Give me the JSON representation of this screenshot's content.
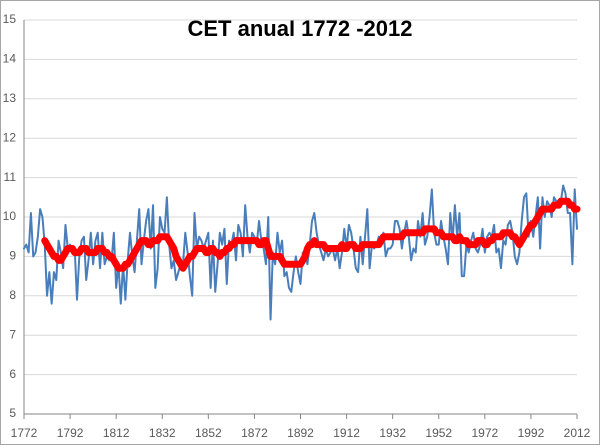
{
  "chart_data": {
    "type": "line",
    "title": "CET anual 1772 -2012",
    "x": [
      1772,
      1773,
      1774,
      1775,
      1776,
      1777,
      1778,
      1779,
      1780,
      1781,
      1782,
      1783,
      1784,
      1785,
      1786,
      1787,
      1788,
      1789,
      1790,
      1791,
      1792,
      1793,
      1794,
      1795,
      1796,
      1797,
      1798,
      1799,
      1800,
      1801,
      1802,
      1803,
      1804,
      1805,
      1806,
      1807,
      1808,
      1809,
      1810,
      1811,
      1812,
      1813,
      1814,
      1815,
      1816,
      1817,
      1818,
      1819,
      1820,
      1821,
      1822,
      1823,
      1824,
      1825,
      1826,
      1827,
      1828,
      1829,
      1830,
      1831,
      1832,
      1833,
      1834,
      1835,
      1836,
      1837,
      1838,
      1839,
      1840,
      1841,
      1842,
      1843,
      1844,
      1845,
      1846,
      1847,
      1848,
      1849,
      1850,
      1851,
      1852,
      1853,
      1854,
      1855,
      1856,
      1857,
      1858,
      1859,
      1860,
      1861,
      1862,
      1863,
      1864,
      1865,
      1866,
      1867,
      1868,
      1869,
      1870,
      1871,
      1872,
      1873,
      1874,
      1875,
      1876,
      1877,
      1878,
      1879,
      1880,
      1881,
      1882,
      1883,
      1884,
      1885,
      1886,
      1887,
      1888,
      1889,
      1890,
      1891,
      1892,
      1893,
      1894,
      1895,
      1896,
      1897,
      1898,
      1899,
      1900,
      1901,
      1902,
      1903,
      1904,
      1905,
      1906,
      1907,
      1908,
      1909,
      1910,
      1911,
      1912,
      1913,
      1914,
      1915,
      1916,
      1917,
      1918,
      1919,
      1920,
      1921,
      1922,
      1923,
      1924,
      1925,
      1926,
      1927,
      1928,
      1929,
      1930,
      1931,
      1932,
      1933,
      1934,
      1935,
      1936,
      1937,
      1938,
      1939,
      1940,
      1941,
      1942,
      1943,
      1944,
      1945,
      1946,
      1947,
      1948,
      1949,
      1950,
      1951,
      1952,
      1953,
      1954,
      1955,
      1956,
      1957,
      1958,
      1959,
      1960,
      1961,
      1962,
      1963,
      1964,
      1965,
      1966,
      1967,
      1968,
      1969,
      1970,
      1971,
      1972,
      1973,
      1974,
      1975,
      1976,
      1977,
      1978,
      1979,
      1980,
      1981,
      1982,
      1983,
      1984,
      1985,
      1986,
      1987,
      1988,
      1989,
      1990,
      1991,
      1992,
      1993,
      1994,
      1995,
      1996,
      1997,
      1998,
      1999,
      2000,
      2001,
      2002,
      2003,
      2004,
      2005,
      2006,
      2007,
      2008,
      2009,
      2010,
      2011,
      2012
    ],
    "series": [
      {
        "color": "#4a7ebb",
        "width": 2,
        "values": [
          9.2,
          9.3,
          9.1,
          10.1,
          9.0,
          9.1,
          9.5,
          10.2,
          10.0,
          9.3,
          8.0,
          8.6,
          7.8,
          8.6,
          8.4,
          9.4,
          9.1,
          8.7,
          9.8,
          9.2,
          9.3,
          9.2,
          9.2,
          7.9,
          9.0,
          9.4,
          9.5,
          8.4,
          8.9,
          9.6,
          8.8,
          9.4,
          9.6,
          8.7,
          9.6,
          8.8,
          9.0,
          8.9,
          8.9,
          9.6,
          8.2,
          8.8,
          7.8,
          8.8,
          7.9,
          8.9,
          9.6,
          9.0,
          8.6,
          9.4,
          10.2,
          8.8,
          9.4,
          9.9,
          10.2,
          9.2,
          10.3,
          8.2,
          8.7,
          10.0,
          9.7,
          9.6,
          10.5,
          9.3,
          8.7,
          8.9,
          8.4,
          8.6,
          8.8,
          8.8,
          9.6,
          9.1,
          8.5,
          8.0,
          10.1,
          9.2,
          9.5,
          9.4,
          9.2,
          9.4,
          9.6,
          8.2,
          9.4,
          8.1,
          8.8,
          9.6,
          9.3,
          9.7,
          8.3,
          9.4,
          9.3,
          9.6,
          8.9,
          9.8,
          9.6,
          9.0,
          10.3,
          9.5,
          9.1,
          9.6,
          9.5,
          9.3,
          9.9,
          9.4,
          9.2,
          8.8,
          10.0,
          7.4,
          9.1,
          8.8,
          9.6,
          9.1,
          9.4,
          8.5,
          8.6,
          8.2,
          8.1,
          8.6,
          9.0,
          8.6,
          8.3,
          9.1,
          9.1,
          8.8,
          9.3,
          9.9,
          10.1,
          9.6,
          9.3,
          9.1,
          8.9,
          9.2,
          9.0,
          9.1,
          9.2,
          8.9,
          9.2,
          8.7,
          9.1,
          9.7,
          9.2,
          9.8,
          9.6,
          9.2,
          8.7,
          8.6,
          9.5,
          8.8,
          9.5,
          10.2,
          8.7,
          9.3,
          9.2,
          9.3,
          9.5,
          9.4,
          9.6,
          9.0,
          9.2,
          9.2,
          9.3,
          9.9,
          9.9,
          9.7,
          9.2,
          9.6,
          9.9,
          9.5,
          8.9,
          9.2,
          9.1,
          9.9,
          9.5,
          10.1,
          9.3,
          9.5,
          10.0,
          10.7,
          9.6,
          9.3,
          9.3,
          9.9,
          9.5,
          9.2,
          8.8,
          10.1,
          9.4,
          10.3,
          9.5,
          10.1,
          8.5,
          8.5,
          9.3,
          9.1,
          9.4,
          9.6,
          9.2,
          9.1,
          9.3,
          9.7,
          9.1,
          9.5,
          9.6,
          9.5,
          9.8,
          9.1,
          9.2,
          8.7,
          9.4,
          9.3,
          9.8,
          9.9,
          9.6,
          9.0,
          8.8,
          9.1,
          9.9,
          10.5,
          10.6,
          9.5,
          9.9,
          9.5,
          10.0,
          10.5,
          9.2,
          10.5,
          10.0,
          10.4,
          10.3,
          10.0,
          10.5,
          10.4,
          10.4,
          10.4,
          10.8,
          10.6,
          10.1,
          10.1,
          8.8,
          10.7,
          9.7
        ]
      },
      {
        "color": "#ff0000",
        "width": 7,
        "values": [
          null,
          null,
          null,
          null,
          null,
          null,
          null,
          null,
          null,
          9.4,
          9.3,
          9.2,
          9.1,
          9.0,
          9.0,
          8.9,
          8.9,
          9.0,
          9.1,
          9.2,
          9.2,
          9.2,
          9.1,
          9.1,
          9.1,
          9.2,
          9.2,
          9.2,
          9.1,
          9.1,
          9.1,
          9.1,
          9.2,
          9.2,
          9.2,
          9.1,
          9.1,
          9.0,
          9.0,
          8.9,
          8.8,
          8.7,
          8.7,
          8.7,
          8.8,
          8.8,
          8.9,
          9.0,
          9.1,
          9.2,
          9.3,
          9.4,
          9.4,
          9.4,
          9.3,
          9.3,
          9.4,
          9.4,
          9.4,
          9.5,
          9.5,
          9.5,
          9.5,
          9.4,
          9.3,
          9.2,
          9.0,
          8.9,
          8.8,
          8.7,
          8.8,
          8.9,
          9.0,
          9.0,
          9.1,
          9.2,
          9.2,
          9.2,
          9.2,
          9.1,
          9.1,
          9.2,
          9.2,
          9.1,
          9.1,
          9.0,
          9.1,
          9.1,
          9.2,
          9.2,
          9.3,
          9.3,
          9.4,
          9.4,
          9.4,
          9.4,
          9.4,
          9.4,
          9.4,
          9.4,
          9.4,
          9.4,
          9.3,
          9.3,
          9.4,
          9.4,
          9.2,
          9.0,
          9.0,
          9.0,
          9.0,
          9.0,
          8.9,
          8.8,
          8.8,
          8.8,
          8.8,
          8.8,
          8.8,
          8.8,
          8.8,
          8.9,
          9.0,
          9.2,
          9.3,
          9.3,
          9.4,
          9.3,
          9.3,
          9.3,
          9.3,
          9.2,
          9.2,
          9.2,
          9.2,
          9.2,
          9.2,
          9.2,
          9.3,
          9.2,
          9.2,
          9.3,
          9.3,
          9.3,
          9.2,
          9.2,
          9.2,
          9.3,
          9.3,
          9.3,
          9.3,
          9.3,
          9.3,
          9.3,
          9.3,
          9.4,
          9.5,
          9.5,
          9.5,
          9.5,
          9.5,
          9.5,
          9.5,
          9.5,
          9.5,
          9.6,
          9.6,
          9.6,
          9.6,
          9.6,
          9.6,
          9.6,
          9.6,
          9.6,
          9.7,
          9.7,
          9.7,
          9.7,
          9.7,
          9.6,
          9.6,
          9.6,
          9.5,
          9.5,
          9.5,
          9.5,
          9.5,
          9.4,
          9.4,
          9.5,
          9.4,
          9.4,
          9.4,
          9.3,
          9.3,
          9.3,
          9.3,
          9.4,
          9.4,
          9.4,
          9.3,
          9.3,
          9.4,
          9.4,
          9.5,
          9.5,
          9.5,
          9.5,
          9.6,
          9.6,
          9.6,
          9.6,
          9.5,
          9.5,
          9.4,
          9.3,
          9.4,
          9.5,
          9.6,
          9.7,
          9.8,
          9.8,
          9.9,
          10.0,
          10.1,
          10.2,
          10.2,
          10.2,
          10.2,
          10.2,
          10.3,
          10.3,
          10.3,
          10.4,
          10.4,
          10.4,
          10.4,
          10.3,
          10.3,
          10.2,
          10.2
        ]
      }
    ],
    "xlim": [
      1772,
      2012
    ],
    "xticks": [
      1772,
      1792,
      1812,
      1832,
      1852,
      1872,
      1892,
      1912,
      1932,
      1952,
      1972,
      1992,
      2012
    ],
    "ylim": [
      5,
      15
    ],
    "yticks": [
      5,
      6,
      7,
      8,
      9,
      10,
      11,
      12,
      13,
      14,
      15
    ],
    "grid": true
  }
}
